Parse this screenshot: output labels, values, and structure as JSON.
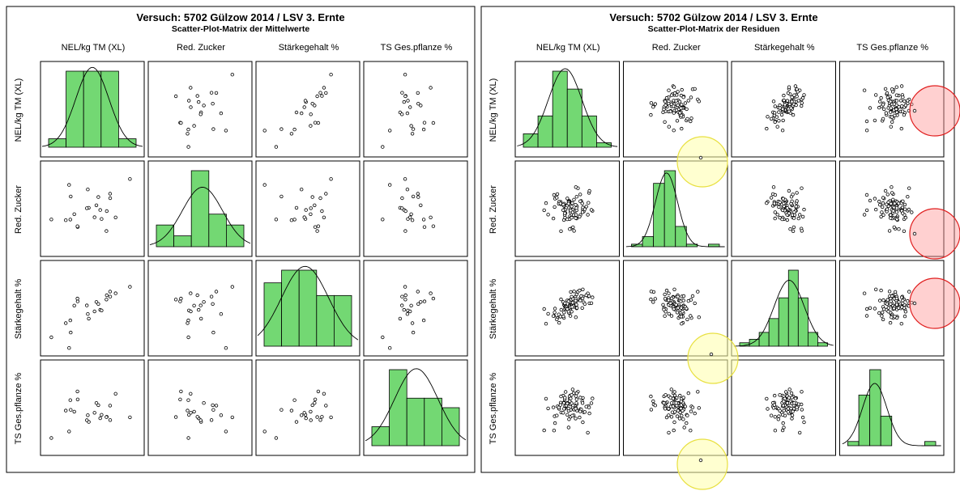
{
  "chart_data": [
    {
      "type": "scatter-matrix",
      "title": "Versuch: 5702 Gülzow 2014 / LSV 3. Ernte",
      "subtitle": "Scatter-Plot-Matrix der Mittelwerte",
      "variables": [
        "NEL/kg TM (XL)",
        "Red. Zucker",
        "Stärkegehalt %",
        "TS Ges.pflanze %"
      ],
      "diagonal": "histogram with normal density curve",
      "histograms": [
        {
          "variable": "NEL/kg TM (XL)",
          "counts": [
            1,
            9,
            9,
            9,
            1
          ]
        },
        {
          "variable": "Red. Zucker",
          "counts": [
            2,
            1,
            7,
            3,
            2
          ]
        },
        {
          "variable": "Stärkegehalt %",
          "counts": [
            5,
            6,
            6,
            4,
            4
          ]
        },
        {
          "variable": "TS Ges.pflanze %",
          "counts": [
            2,
            8,
            5,
            5,
            4
          ]
        }
      ]
    },
    {
      "type": "scatter-matrix",
      "title": "Versuch: 5702 Gülzow 2014 / LSV 3. Ernte",
      "subtitle": "Scatter-Plot-Matrix der Residuen",
      "variables": [
        "NEL/kg TM (XL)",
        "Red. Zucker",
        "Stärkegehalt %",
        "TS Ges.pflanze %"
      ],
      "diagonal": "histogram with normal density curve",
      "histograms": [
        {
          "variable": "NEL/kg TM (XL)",
          "counts": [
            3,
            7,
            17,
            13,
            7,
            1
          ]
        },
        {
          "variable": "Red. Zucker",
          "counts": [
            1,
            4,
            25,
            30,
            8,
            1,
            0,
            1
          ]
        },
        {
          "variable": "Stärkegehalt %",
          "counts": [
            1,
            2,
            4,
            8,
            14,
            22,
            14,
            4,
            1
          ]
        },
        {
          "variable": "TS Ges.pflanze %",
          "counts": [
            1,
            12,
            18,
            7,
            0,
            0,
            0,
            1
          ]
        }
      ],
      "highlighted_outliers": {
        "red": [
          "right of TS Ges.pflanze % column, row NEL/kg TM (XL)",
          "right of TS Ges.pflanze % column, row Red. Zucker",
          "right of TS Ges.pflanze % column, row Stärkegehalt %"
        ],
        "yellow": [
          "Red. Zucker column, row NEL/kg TM (XL)",
          "Red. Zucker column, row Stärkegehalt %",
          "Red. Zucker column, row TS Ges.pflanze %"
        ]
      }
    }
  ]
}
